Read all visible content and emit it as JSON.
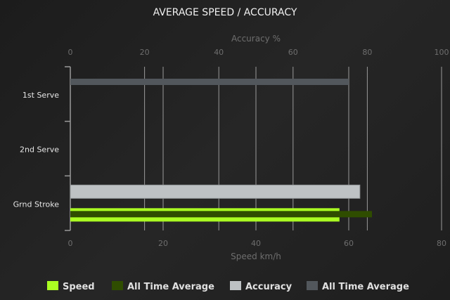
{
  "chart_data": {
    "type": "bar",
    "orientation": "horizontal",
    "title": "AVERAGE SPEED / ACCURACY",
    "categories": [
      "1st Serve",
      "2nd Serve",
      "Grnd Stroke"
    ],
    "x_top": {
      "label": "Accuracy %",
      "range": [
        0,
        100
      ],
      "ticks": [
        0,
        20,
        40,
        60,
        80,
        100
      ]
    },
    "x_bottom": {
      "label": "Speed km/h",
      "range": [
        0,
        80
      ],
      "ticks": [
        0,
        20,
        40,
        60,
        80
      ]
    },
    "grid": true,
    "legend_position": "bottom",
    "series": [
      {
        "name": "Speed",
        "axis": "bottom",
        "color": "#aaff22",
        "values": [
          null,
          null,
          58
        ]
      },
      {
        "name": "All Time Average",
        "axis": "bottom",
        "color": "#2f4d00",
        "values": [
          null,
          null,
          65
        ]
      },
      {
        "name": "Accuracy",
        "axis": "top",
        "color": "#bec2c4",
        "values": [
          null,
          null,
          78
        ]
      },
      {
        "name": "All Time Average",
        "axis": "top",
        "color": "#52575c",
        "values": [
          75,
          null,
          null
        ]
      }
    ]
  }
}
